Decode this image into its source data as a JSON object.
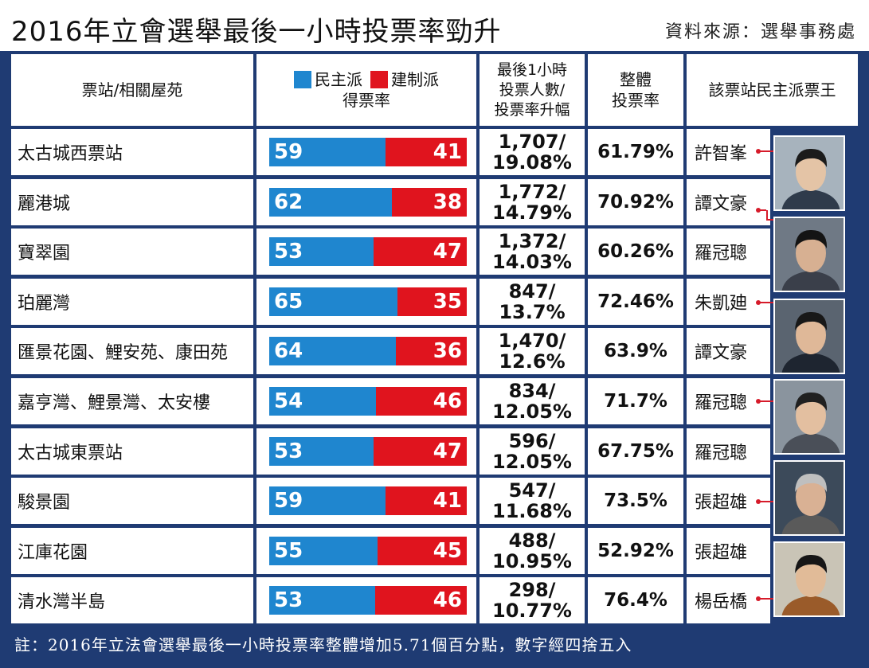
{
  "title": "2016年立會選舉最後一小時投票率勁升",
  "source": "資料來源：選舉事務處",
  "headers": {
    "station": "票站/相關屋苑",
    "legend_dem": "民主派",
    "legend_pro": "建制派",
    "legend_suffix": "得票率",
    "last_hour": [
      "最後1小時",
      "投票人數/",
      "投票率升幅"
    ],
    "turnout": [
      "整體",
      "投票率"
    ],
    "king": "該票站民主派票王"
  },
  "rows": [
    {
      "station": "太古城西票站",
      "voters": "1,707/",
      "rise": "19.08%",
      "turnout": "61.79%",
      "king": "許智峯"
    },
    {
      "station": "麗港城",
      "voters": "1,772/",
      "rise": "14.79%",
      "turnout": "70.92%",
      "king": "譚文豪"
    },
    {
      "station": "寶翠園",
      "voters": "1,372/",
      "rise": "14.03%",
      "turnout": "60.26%",
      "king": "羅冠聰"
    },
    {
      "station": "珀麗灣",
      "voters": "847/",
      "rise": "13.7%",
      "turnout": "72.46%",
      "king": "朱凱廸"
    },
    {
      "station": "匯景花園、鯉安苑、康田苑",
      "voters": "1,470/",
      "rise": "12.6%",
      "turnout": "63.9%",
      "king": "譚文豪"
    },
    {
      "station": "嘉亨灣、鯉景灣、太安樓",
      "voters": "834/",
      "rise": "12.05%",
      "turnout": "71.7%",
      "king": "羅冠聰"
    },
    {
      "station": "太古城東票站",
      "voters": "596/",
      "rise": "12.05%",
      "turnout": "67.75%",
      "king": "羅冠聰"
    },
    {
      "station": "駿景園",
      "voters": "547/",
      "rise": "11.68%",
      "turnout": "73.5%",
      "king": "張超雄"
    },
    {
      "station": "江庫花園",
      "voters": "488/",
      "rise": "10.95%",
      "turnout": "52.92%",
      "king": "張超雄"
    },
    {
      "station": "清水灣半島",
      "voters": "298/",
      "rise": "10.77%",
      "turnout": "76.4%",
      "king": "楊岳橋"
    }
  ],
  "chart_data": {
    "type": "bar",
    "stacked": true,
    "orientation": "horizontal",
    "categories": [
      "太古城西票站",
      "麗港城",
      "寶翠園",
      "珀麗灣",
      "匯景花園、鯉安苑、康田苑",
      "嘉亨灣、鯉景灣、太安樓",
      "太古城東票站",
      "駿景園",
      "江庫花園",
      "清水灣半島"
    ],
    "series": [
      {
        "name": "民主派",
        "values": [
          59,
          62,
          53,
          65,
          64,
          54,
          53,
          59,
          55,
          53
        ]
      },
      {
        "name": "建制派",
        "values": [
          41,
          38,
          47,
          35,
          36,
          46,
          47,
          41,
          45,
          46
        ]
      }
    ],
    "colors": {
      "dem": "#1f86cf",
      "pro": "#e0141e"
    }
  },
  "footnote": "註：2016年立法會選舉最後一小時投票率整體增加5.71個百分點，數字經四捨五入",
  "colors": {
    "background": "#1f3b73",
    "connector": "#d61b2a"
  },
  "photo_icons": [
    "portrait-1",
    "portrait-2",
    "portrait-3",
    "portrait-4",
    "portrait-5",
    "portrait-6"
  ]
}
